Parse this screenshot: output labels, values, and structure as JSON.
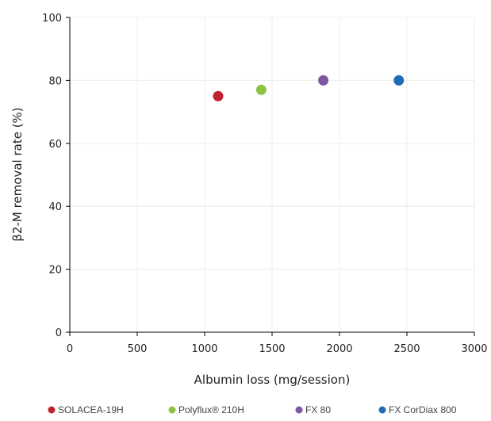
{
  "chart_data": {
    "type": "scatter",
    "xlabel": "Albumin loss (mg/session)",
    "ylabel": "β2-M removal rate (%)",
    "xlim": [
      0,
      3000
    ],
    "ylim": [
      0,
      100
    ],
    "xticks": [
      0,
      500,
      1000,
      1500,
      2000,
      2500,
      3000
    ],
    "yticks": [
      0,
      20,
      40,
      60,
      80,
      100
    ],
    "grid": true,
    "legend_position": "bottom",
    "series": [
      {
        "name": "SOLACEA-19H",
        "x": [
          1100
        ],
        "y": [
          75
        ],
        "color": "#c0222e"
      },
      {
        "name": "Polyflux® 210H",
        "x": [
          1420
        ],
        "y": [
          77
        ],
        "color": "#8dc245"
      },
      {
        "name": "FX 80",
        "x": [
          1880
        ],
        "y": [
          80
        ],
        "color": "#7e56a0"
      },
      {
        "name": "FX CorDiax 800",
        "x": [
          2440
        ],
        "y": [
          80
        ],
        "color": "#1f6db6"
      }
    ]
  }
}
